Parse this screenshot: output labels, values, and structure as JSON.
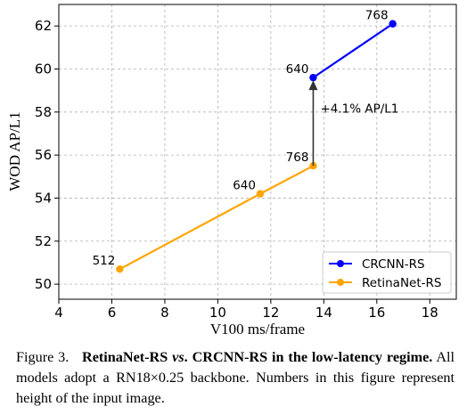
{
  "chart_data": {
    "type": "line",
    "xlabel": "V100 ms/frame",
    "ylabel": "WOD AP/L1",
    "xlim": [
      4,
      19
    ],
    "ylim": [
      49.3,
      63
    ],
    "x_ticks": [
      4,
      6,
      8,
      10,
      12,
      14,
      16,
      18
    ],
    "y_ticks": [
      50,
      52,
      54,
      56,
      58,
      60,
      62
    ],
    "grid": true,
    "legend_position": "lower-right",
    "series": [
      {
        "name": "CRCNN-RS",
        "color": "#0000ff",
        "points": [
          {
            "x": 13.6,
            "y": 59.6,
            "label": "640"
          },
          {
            "x": 16.6,
            "y": 62.1,
            "label": "768"
          }
        ]
      },
      {
        "name": "RetinaNet-RS",
        "color": "#ffa500",
        "points": [
          {
            "x": 6.3,
            "y": 50.7,
            "label": "512"
          },
          {
            "x": 11.6,
            "y": 54.2,
            "label": "640"
          },
          {
            "x": 13.6,
            "y": 55.5,
            "label": "768"
          }
        ]
      }
    ],
    "annotations": [
      {
        "text": "+4.1% AP/L1",
        "from": {
          "x": 13.6,
          "y": 55.5
        },
        "to": {
          "x": 13.6,
          "y": 59.6
        }
      }
    ]
  },
  "caption": {
    "prefix": "Figure 3.",
    "bold_a": "RetinaNet-RS",
    "italic_vs": "vs",
    "bold_b": ". CRCNN-RS in the low-latency regime.",
    "body": "All models adopt a RN18×0.25 backbone. Numbers in this figure represent height of the input image."
  }
}
